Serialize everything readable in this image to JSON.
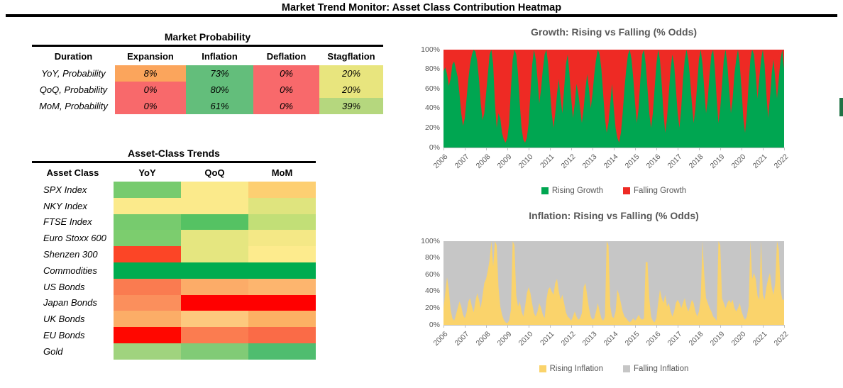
{
  "page": {
    "title": "Market Trend Monitor: Asset Class Contribution Heatmap"
  },
  "market_probability": {
    "title": "Market Probability",
    "columns": [
      "Duration",
      "Expansion",
      "Inflation",
      "Deflation",
      "Stagflation"
    ],
    "rows": [
      {
        "label": "YoY, Probability",
        "values": [
          "8%",
          "73%",
          "0%",
          "20%"
        ],
        "colors": [
          "#FBA55C",
          "#63BE7B",
          "#F8696B",
          "#E8E57E"
        ]
      },
      {
        "label": "QoQ, Probability",
        "values": [
          "0%",
          "80%",
          "0%",
          "20%"
        ],
        "colors": [
          "#F8696B",
          "#63BE7B",
          "#F8696B",
          "#E8E57E"
        ]
      },
      {
        "label": "MoM, Probability",
        "values": [
          "0%",
          "61%",
          "0%",
          "39%"
        ],
        "colors": [
          "#F8696B",
          "#63BE7B",
          "#F8696B",
          "#B5D77E"
        ]
      }
    ]
  },
  "asset_trends": {
    "title": "Asset-Class Trends",
    "columns": [
      "Asset Class",
      "YoY",
      "QoQ",
      "MoM"
    ],
    "rows": [
      {
        "label": "SPX Index",
        "colors": [
          "#77CB6E",
          "#FBEA8B",
          "#FDCF72"
        ]
      },
      {
        "label": "NKY Index",
        "colors": [
          "#FBEA8B",
          "#FBEA8B",
          "#DFE47E"
        ]
      },
      {
        "label": "FTSE Index",
        "colors": [
          "#77CB6E",
          "#55C263",
          "#C2DF77"
        ]
      },
      {
        "label": "Euro Stoxx 600",
        "colors": [
          "#7CCD6E",
          "#E5E680",
          "#F4E886"
        ]
      },
      {
        "label": "Shenzen 300",
        "colors": [
          "#FC4526",
          "#E5E680",
          "#FDEB8D"
        ]
      },
      {
        "label": "Commodities",
        "colors": [
          "#00AC50",
          "#00AC50",
          "#00AC50"
        ]
      },
      {
        "label": "US Bonds",
        "colors": [
          "#FA7B50",
          "#FCAC68",
          "#FDB56E"
        ]
      },
      {
        "label": "Japan Bonds",
        "colors": [
          "#FB8F5C",
          "#FF0000",
          "#FF0000"
        ]
      },
      {
        "label": "UK Bonds",
        "colors": [
          "#FCAD67",
          "#FDC97E",
          "#FCB164"
        ]
      },
      {
        "label": "EU Bonds",
        "colors": [
          "#FF0700",
          "#FB7C50",
          "#FA6B47"
        ]
      },
      {
        "label": "Gold",
        "colors": [
          "#A0D37E",
          "#81CB76",
          "#4FBD6F"
        ]
      }
    ]
  },
  "chart_data": [
    {
      "type": "area",
      "stacked_percent": true,
      "title": "Growth: Rising vs Falling (% Odds)",
      "xlabel": "",
      "ylabel": "",
      "ylim": [
        0,
        100
      ],
      "grid": false,
      "legend_position": "bottom",
      "x_ticks": [
        2006,
        2007,
        2008,
        2009,
        2010,
        2011,
        2012,
        2013,
        2014,
        2015,
        2016,
        2017,
        2018,
        2019,
        2020,
        2021,
        2022
      ],
      "y_ticks": [
        "100%",
        "80%",
        "60%",
        "40%",
        "20%",
        "0%"
      ],
      "x_unit": "monthly, Jan 2006 - Jan 2022 (approximate readings)",
      "series": [
        {
          "name": "Rising Growth",
          "color": "#00A651",
          "values": [
            78,
            82,
            75,
            63,
            70,
            85,
            88,
            80,
            72,
            55,
            35,
            22,
            30,
            50,
            70,
            85,
            95,
            100,
            98,
            88,
            70,
            45,
            28,
            35,
            55,
            75,
            95,
            100,
            85,
            45,
            20,
            35,
            30,
            15,
            8,
            5,
            10,
            25,
            60,
            90,
            100,
            95,
            75,
            45,
            20,
            8,
            5,
            10,
            25,
            55,
            85,
            100,
            90,
            70,
            45,
            60,
            80,
            95,
            100,
            85,
            60,
            35,
            20,
            35,
            55,
            70,
            50,
            35,
            60,
            85,
            95,
            75,
            50,
            30,
            45,
            65,
            55,
            40,
            25,
            40,
            60,
            75,
            60,
            40,
            55,
            75,
            90,
            100,
            95,
            80,
            55,
            30,
            15,
            25,
            45,
            65,
            40,
            20,
            10,
            5,
            15,
            35,
            60,
            80,
            95,
            100,
            90,
            70,
            45,
            25,
            40,
            70,
            95,
            100,
            85,
            60,
            35,
            20,
            35,
            60,
            85,
            100,
            90,
            65,
            35,
            15,
            30,
            55,
            80,
            95,
            85,
            60,
            35,
            20,
            40,
            70,
            90,
            100,
            90,
            70,
            45,
            25,
            40,
            65,
            90,
            100,
            85,
            60,
            35,
            50,
            75,
            95,
            100,
            80,
            50,
            25,
            40,
            65,
            90,
            100,
            85,
            60,
            35,
            50,
            75,
            90,
            100,
            85,
            60,
            30,
            15,
            35,
            65,
            90,
            100,
            95,
            75,
            50,
            70,
            90,
            100,
            85,
            55,
            30,
            50,
            75,
            90,
            70,
            50,
            70,
            90,
            100,
            80
          ]
        },
        {
          "name": "Falling Growth",
          "color": "#EE2A24",
          "derived": "100 minus Rising Growth at every point"
        }
      ]
    },
    {
      "type": "area",
      "stacked_percent": true,
      "title": "Inflation: Rising vs Falling  (% Odds)",
      "xlabel": "",
      "ylabel": "",
      "ylim": [
        0,
        100
      ],
      "grid": false,
      "legend_position": "bottom",
      "x_ticks": [
        2006,
        2007,
        2008,
        2009,
        2010,
        2011,
        2012,
        2013,
        2014,
        2015,
        2016,
        2017,
        2018,
        2019,
        2020,
        2021,
        2022
      ],
      "y_ticks": [
        "100%",
        "80%",
        "60%",
        "40%",
        "20%",
        "0%"
      ],
      "x_unit": "monthly, Jan 2006 - Jan 2022 (approximate readings)",
      "series": [
        {
          "name": "Rising Inflation",
          "color": "#FAD36B",
          "values": [
            20,
            38,
            57,
            42,
            18,
            8,
            5,
            12,
            20,
            28,
            22,
            12,
            8,
            15,
            28,
            32,
            22,
            15,
            28,
            38,
            30,
            20,
            35,
            50,
            55,
            65,
            78,
            100,
            70,
            100,
            95,
            45,
            22,
            12,
            6,
            3,
            2,
            5,
            18,
            100,
            95,
            35,
            22,
            28,
            16,
            10,
            22,
            38,
            45,
            38,
            25,
            14,
            10,
            16,
            26,
            20,
            12,
            8,
            30,
            42,
            45,
            40,
            36,
            50,
            55,
            40,
            30,
            36,
            26,
            15,
            10,
            8,
            5,
            10,
            16,
            10,
            6,
            8,
            14,
            45,
            50,
            35,
            20,
            10,
            6,
            8,
            16,
            26,
            16,
            8,
            5,
            10,
            100,
            95,
            22,
            10,
            8,
            16,
            42,
            36,
            26,
            16,
            10,
            8,
            5,
            3,
            5,
            8,
            5,
            8,
            12,
            8,
            6,
            8,
            75,
            75,
            32,
            10,
            5,
            3,
            8,
            26,
            42,
            32,
            26,
            36,
            22,
            26,
            16,
            10,
            16,
            26,
            30,
            26,
            20,
            26,
            32,
            22,
            16,
            22,
            30,
            26,
            16,
            10,
            16,
            32,
            100,
            60,
            32,
            26,
            20,
            16,
            10,
            8,
            5,
            100,
            95,
            32,
            26,
            20,
            26,
            30,
            26,
            30,
            20,
            16,
            20,
            26,
            16,
            10,
            6,
            10,
            22,
            100,
            55,
            62,
            55,
            35,
            30,
            100,
            36,
            30,
            45,
            55,
            62,
            45,
            36,
            50,
            100,
            90,
            42,
            30,
            30
          ]
        },
        {
          "name": "Falling Inflation",
          "color": "#C6C6C6",
          "derived": "100 minus Rising Inflation at every point"
        }
      ]
    }
  ],
  "artifacts": {
    "edge_bar_color": "#217346"
  }
}
